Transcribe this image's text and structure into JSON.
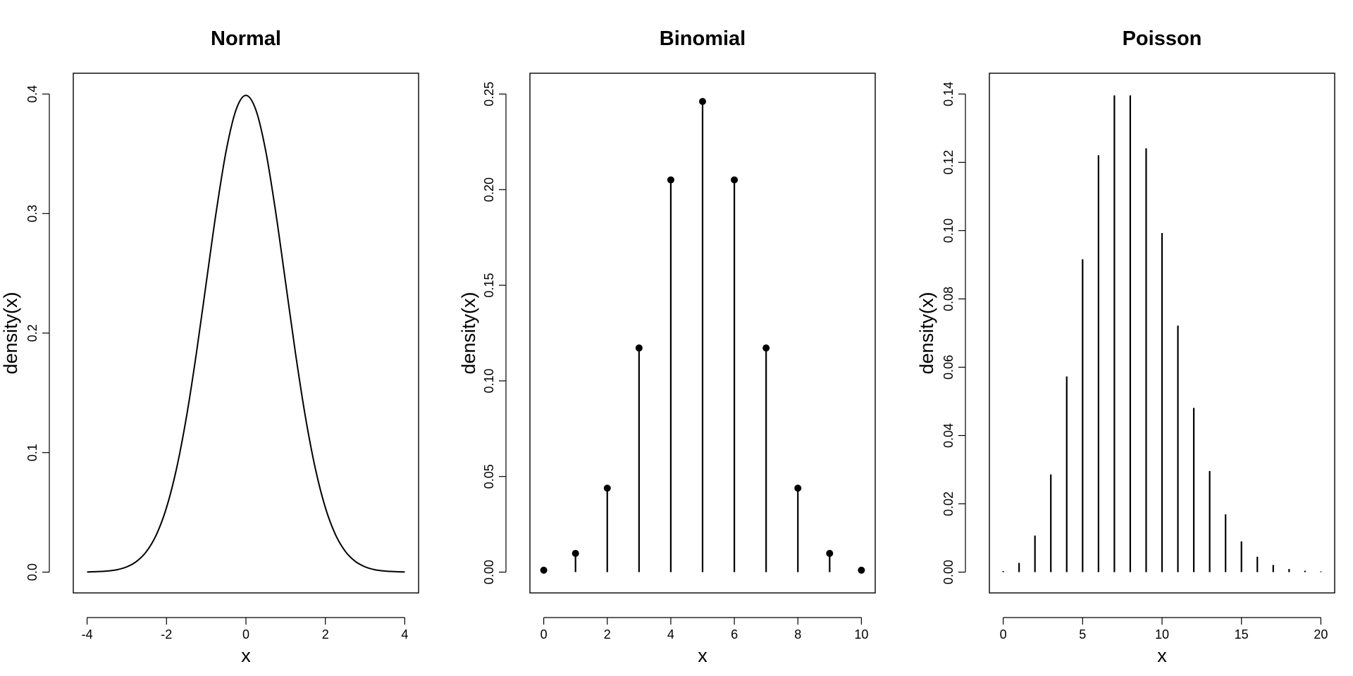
{
  "chart_data": [
    {
      "type": "line",
      "title": "Normal",
      "xlabel": "x",
      "ylabel": "density(x)",
      "xlim": [
        -4,
        4
      ],
      "ylim": [
        0,
        0.4
      ],
      "x_ticks": [
        "-4",
        "-2",
        "0",
        "2",
        "4"
      ],
      "y_ticks": [
        "0.0",
        "0.1",
        "0.2",
        "0.3",
        "0.4"
      ],
      "series": [
        {
          "x": [
            -4,
            -3.75,
            -3.5,
            -3.25,
            -3,
            -2.75,
            -2.5,
            -2.25,
            -2,
            -1.75,
            -1.5,
            -1.25,
            -1,
            -0.75,
            -0.5,
            -0.25,
            0,
            0.25,
            0.5,
            0.75,
            1,
            1.25,
            1.5,
            1.75,
            2,
            2.25,
            2.5,
            2.75,
            3,
            3.25,
            3.5,
            3.75,
            4
          ],
          "values": [
            0.0001,
            0.0004,
            0.0009,
            0.002,
            0.0044,
            0.0091,
            0.0175,
            0.0317,
            0.054,
            0.0863,
            0.1295,
            0.1826,
            0.242,
            0.3011,
            0.3521,
            0.3867,
            0.3989,
            0.3867,
            0.3521,
            0.3011,
            0.242,
            0.1826,
            0.1295,
            0.0863,
            0.054,
            0.0317,
            0.0175,
            0.0091,
            0.0044,
            0.002,
            0.0009,
            0.0004,
            0.0001
          ]
        }
      ]
    },
    {
      "type": "scatter",
      "title": "Binomial",
      "xlabel": "x",
      "ylabel": "density(x)",
      "xlim": [
        0,
        10
      ],
      "ylim": [
        0,
        0.25
      ],
      "x_ticks": [
        "0",
        "2",
        "4",
        "6",
        "8",
        "10"
      ],
      "y_ticks": [
        "0.00",
        "0.05",
        "0.10",
        "0.15",
        "0.20",
        "0.25"
      ],
      "series": [
        {
          "x": [
            0,
            1,
            2,
            3,
            4,
            5,
            6,
            7,
            8,
            9,
            10
          ],
          "values": [
            0.001,
            0.0098,
            0.0439,
            0.1172,
            0.2051,
            0.2461,
            0.2051,
            0.1172,
            0.0439,
            0.0098,
            0.001
          ]
        }
      ]
    },
    {
      "type": "bar",
      "title": "Poisson",
      "xlabel": "x",
      "ylabel": "density(x)",
      "xlim": [
        0,
        20
      ],
      "ylim": [
        0,
        0.14
      ],
      "x_ticks": [
        "0",
        "5",
        "10",
        "15",
        "20"
      ],
      "y_ticks": [
        "0.00",
        "0.02",
        "0.04",
        "0.06",
        "0.08",
        "0.10",
        "0.12",
        "0.14"
      ],
      "series": [
        {
          "x": [
            0,
            1,
            2,
            3,
            4,
            5,
            6,
            7,
            8,
            9,
            10,
            11,
            12,
            13,
            14,
            15,
            16,
            17,
            18,
            19,
            20
          ],
          "values": [
            0.0003,
            0.0027,
            0.0107,
            0.0286,
            0.0573,
            0.0916,
            0.1221,
            0.1396,
            0.1396,
            0.1241,
            0.0993,
            0.0722,
            0.0481,
            0.0296,
            0.0169,
            0.009,
            0.0045,
            0.0021,
            0.0009,
            0.0004,
            0.0002
          ]
        }
      ]
    }
  ]
}
